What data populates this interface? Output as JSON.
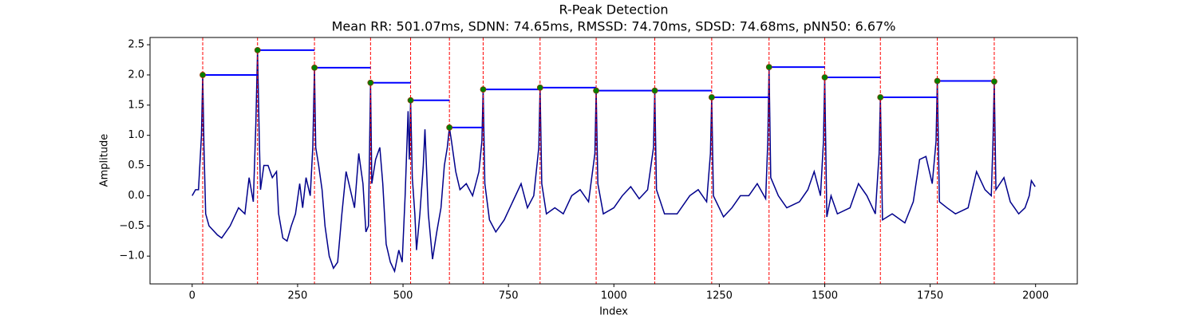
{
  "chart_data": {
    "type": "line",
    "title": "R-Peak Detection",
    "subtitle": "Mean RR: 501.07ms, SDNN: 74.65ms, RMSSD: 74.70ms, SDSD: 74.68ms, pNN50: 6.67%",
    "xlabel": "Index",
    "ylabel": "Amplitude",
    "xlim": [
      -99.95,
      2098.95
    ],
    "ylim": [
      -1.46,
      2.62
    ],
    "xticks": [
      0,
      250,
      500,
      750,
      1000,
      1250,
      1500,
      1750,
      2000
    ],
    "yticks": [
      {
        "value": -1,
        "label": "−1.0"
      },
      {
        "value": -0.5,
        "label": "−0.5"
      },
      {
        "value": 0,
        "label": "0.0"
      },
      0.5,
      {
        "value": 1,
        "label": "1.0"
      },
      1.5,
      {
        "value": 2,
        "label": "2.0"
      },
      2.5
    ],
    "series": [
      {
        "color": "#00008b",
        "x": [
          0,
          8,
          15,
          22,
          25,
          28,
          32,
          40,
          60,
          70,
          90,
          110,
          125,
          135,
          145,
          151,
          155,
          159,
          162,
          170,
          180,
          190,
          200,
          205,
          215,
          225,
          235,
          245,
          255,
          262,
          270,
          280,
          286,
          290,
          293,
          300,
          308,
          315,
          325,
          335,
          345,
          355,
          365,
          375,
          385,
          395,
          405,
          412,
          418,
          420,
          423,
          426,
          435,
          445,
          452,
          460,
          470,
          480,
          490,
          498,
          505,
          512,
          515,
          518,
          522,
          528,
          532,
          540,
          548,
          552,
          560,
          570,
          580,
          590,
          598,
          605,
          610,
          615,
          625,
          635,
          650,
          665,
          680,
          687,
          690,
          694,
          705,
          720,
          740,
          760,
          780,
          795,
          810,
          822,
          825,
          829,
          840,
          860,
          880,
          900,
          920,
          940,
          955,
          958,
          962,
          975,
          1000,
          1020,
          1040,
          1060,
          1080,
          1094,
          1097,
          1101,
          1120,
          1150,
          1180,
          1200,
          1220,
          1229,
          1232,
          1236,
          1260,
          1280,
          1300,
          1320,
          1340,
          1360,
          1365,
          1368,
          1372,
          1390,
          1410,
          1440,
          1460,
          1475,
          1490,
          1497,
          1500,
          1505,
          1515,
          1530,
          1560,
          1580,
          1600,
          1620,
          1629,
          1632,
          1637,
          1660,
          1690,
          1710,
          1725,
          1740,
          1755,
          1764,
          1767,
          1772,
          1790,
          1810,
          1840,
          1860,
          1880,
          1895,
          1899,
          1902,
          1906,
          1925,
          1940,
          1960,
          1975,
          1985,
          1990,
          1999
        ],
        "values": [
          0,
          0.1,
          0.1,
          1.0,
          2.0,
          0.8,
          -0.3,
          -0.5,
          -0.65,
          -0.7,
          -0.5,
          -0.2,
          -0.3,
          0.3,
          -0.1,
          1.2,
          2.41,
          1.0,
          0.1,
          0.5,
          0.5,
          0.3,
          0.4,
          -0.3,
          -0.7,
          -0.75,
          -0.5,
          -0.3,
          0.2,
          -0.2,
          0.3,
          0.0,
          0.8,
          2.12,
          0.8,
          0.5,
          0.1,
          -0.5,
          -1.0,
          -1.2,
          -1.1,
          -0.3,
          0.4,
          0.1,
          -0.2,
          0.7,
          0.2,
          -0.6,
          -0.5,
          0.5,
          1.87,
          0.2,
          0.6,
          0.8,
          0.2,
          -0.8,
          -1.1,
          -1.25,
          -0.9,
          -1.1,
          0.0,
          1.4,
          0.6,
          1.58,
          0.3,
          -0.3,
          -0.9,
          -0.3,
          0.5,
          1.1,
          -0.3,
          -1.05,
          -0.6,
          -0.2,
          0.5,
          0.8,
          1.13,
          0.9,
          0.4,
          0.1,
          0.2,
          0.0,
          0.4,
          0.9,
          1.76,
          0.2,
          -0.4,
          -0.6,
          -0.4,
          -0.1,
          0.2,
          -0.2,
          0.0,
          0.8,
          1.79,
          0.2,
          -0.3,
          -0.2,
          -0.3,
          0.0,
          0.1,
          -0.1,
          0.7,
          1.74,
          0.2,
          -0.3,
          -0.2,
          0.0,
          0.15,
          -0.05,
          0.1,
          0.8,
          1.74,
          0.1,
          -0.3,
          -0.3,
          0.0,
          0.1,
          -0.1,
          0.7,
          1.63,
          0.0,
          -0.35,
          -0.2,
          0.0,
          0.0,
          0.2,
          -0.05,
          0.9,
          2.13,
          0.3,
          0.0,
          -0.2,
          -0.1,
          0.1,
          0.4,
          0.0,
          0.9,
          1.96,
          -0.35,
          0.0,
          -0.3,
          -0.2,
          0.2,
          0.0,
          -0.3,
          0.7,
          1.63,
          -0.4,
          -0.3,
          -0.45,
          -0.1,
          0.6,
          0.65,
          0.2,
          0.9,
          1.9,
          -0.1,
          -0.2,
          -0.3,
          -0.2,
          0.4,
          0.1,
          0.0,
          0.9,
          1.89,
          0.1,
          0.3,
          -0.1,
          -0.3,
          -0.2,
          0.0,
          0.25,
          0.15
        ]
      }
    ],
    "peaks": {
      "x": [
        25,
        155,
        290,
        423,
        518,
        610,
        690,
        825,
        958,
        1097,
        1232,
        1368,
        1500,
        1632,
        1767,
        1902
      ],
      "values": [
        2.0,
        2.41,
        2.12,
        1.87,
        1.58,
        1.13,
        1.76,
        1.79,
        1.74,
        1.74,
        1.63,
        2.13,
        1.96,
        1.63,
        1.9,
        1.89
      ],
      "color": "#008000",
      "line_color": "#ff0000",
      "rr_color": "#0000ff"
    }
  }
}
